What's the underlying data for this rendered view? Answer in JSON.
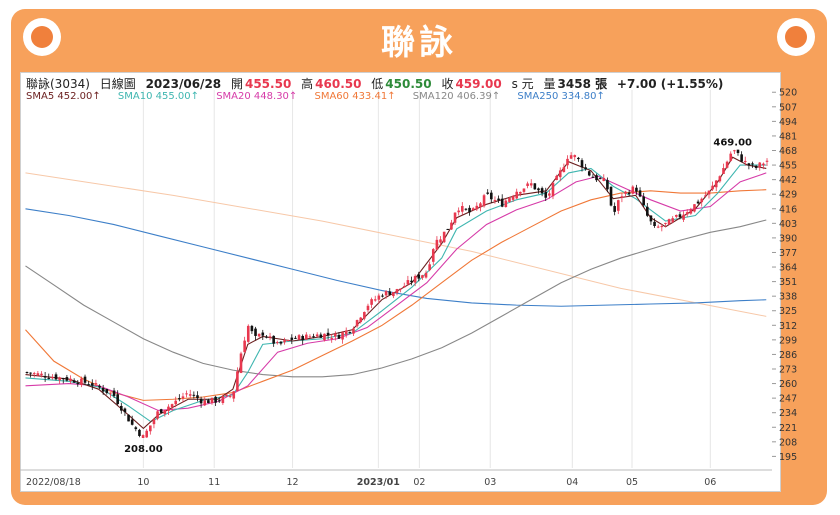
{
  "header": {
    "title": "聯詠"
  },
  "info": {
    "name": "聯詠(3034)",
    "period": "日線圖",
    "date": "2023/06/28",
    "open_label": "開",
    "open": "455.50",
    "high_label": "高",
    "high": "460.50",
    "low_label": "低",
    "low": "450.50",
    "close_label": "收",
    "close": "459.00",
    "currency": "s 元",
    "volume_label": "量",
    "volume": "3458 張",
    "change": "+7.00 (+1.55%)"
  },
  "colors": {
    "frame": "#f7a15b",
    "up": "#e8384f",
    "down": "#111111",
    "sma5": "#6b1f1f",
    "sma10": "#3fb6b0",
    "sma20": "#d63ba8",
    "sma60": "#f07838",
    "sma120": "#888888",
    "sma250": "#3d7fc8"
  },
  "chart_data": {
    "type": "candlestick",
    "y_axis": {
      "min": 190,
      "max": 522,
      "ticks": [
        520,
        507,
        494,
        481,
        468,
        455,
        442,
        429,
        416,
        403,
        390,
        377,
        364,
        351,
        338,
        325,
        312,
        299,
        286,
        273,
        260,
        247,
        234,
        221,
        208,
        195
      ]
    },
    "x_axis": {
      "labels": [
        "2022/08/18",
        "10",
        "11",
        "12",
        "2023/01",
        "02",
        "03",
        "04",
        "05",
        "06"
      ]
    },
    "annotations": [
      {
        "label": "208.00",
        "value": 208
      },
      {
        "label": "469.00",
        "value": 469
      }
    ],
    "legend": [
      {
        "key": "sma5",
        "label": "SMA5 452.00↑"
      },
      {
        "key": "sma10",
        "label": "SMA10 455.00↑"
      },
      {
        "key": "sma20",
        "label": "SMA20 448.30↑"
      },
      {
        "key": "sma60",
        "label": "SMA60 433.41↑"
      },
      {
        "key": "sma120",
        "label": "SMA120 406.39↑"
      },
      {
        "key": "sma250",
        "label": "SMA250 334.80↑"
      }
    ],
    "close_series": [
      {
        "x": 0.2,
        "v": 270
      },
      {
        "x": 6,
        "v": 264
      },
      {
        "x": 9,
        "v": 260
      },
      {
        "x": 12,
        "v": 250
      },
      {
        "x": 14.5,
        "v": 223
      },
      {
        "x": 16,
        "v": 212
      },
      {
        "x": 18,
        "v": 235
      },
      {
        "x": 20,
        "v": 242
      },
      {
        "x": 22,
        "v": 252
      },
      {
        "x": 24,
        "v": 244
      },
      {
        "x": 26,
        "v": 245
      },
      {
        "x": 28,
        "v": 250
      },
      {
        "x": 29,
        "v": 285
      },
      {
        "x": 30,
        "v": 312
      },
      {
        "x": 31,
        "v": 300
      },
      {
        "x": 32,
        "v": 305
      },
      {
        "x": 34,
        "v": 294
      },
      {
        "x": 36,
        "v": 300
      },
      {
        "x": 38,
        "v": 302
      },
      {
        "x": 40,
        "v": 304
      },
      {
        "x": 42,
        "v": 302
      },
      {
        "x": 44,
        "v": 310
      },
      {
        "x": 45,
        "v": 320
      },
      {
        "x": 46,
        "v": 330
      },
      {
        "x": 48,
        "v": 340
      },
      {
        "x": 50,
        "v": 343
      },
      {
        "x": 52,
        "v": 352
      },
      {
        "x": 54,
        "v": 360
      },
      {
        "x": 55,
        "v": 385
      },
      {
        "x": 56,
        "v": 392
      },
      {
        "x": 57,
        "v": 400
      },
      {
        "x": 58,
        "v": 418
      },
      {
        "x": 60,
        "v": 412
      },
      {
        "x": 62,
        "v": 428
      },
      {
        "x": 64,
        "v": 420
      },
      {
        "x": 66,
        "v": 432
      },
      {
        "x": 68,
        "v": 438
      },
      {
        "x": 70,
        "v": 425
      },
      {
        "x": 72,
        "v": 450
      },
      {
        "x": 73,
        "v": 465
      },
      {
        "x": 74,
        "v": 462
      },
      {
        "x": 76,
        "v": 445
      },
      {
        "x": 78,
        "v": 440
      },
      {
        "x": 79,
        "v": 410
      },
      {
        "x": 80,
        "v": 428
      },
      {
        "x": 82,
        "v": 435
      },
      {
        "x": 83.5,
        "v": 410
      },
      {
        "x": 84.5,
        "v": 398
      },
      {
        "x": 86,
        "v": 402
      },
      {
        "x": 88,
        "v": 410
      },
      {
        "x": 90,
        "v": 420
      },
      {
        "x": 92,
        "v": 432
      },
      {
        "x": 94,
        "v": 455
      },
      {
        "x": 95,
        "v": 469
      },
      {
        "x": 96.5,
        "v": 458
      },
      {
        "x": 98,
        "v": 452
      },
      {
        "x": 99.5,
        "v": 459
      }
    ],
    "sma_series": {
      "sma5": [
        [
          0.2,
          268
        ],
        [
          6,
          264
        ],
        [
          10,
          255
        ],
        [
          14,
          232
        ],
        [
          16,
          220
        ],
        [
          18,
          232
        ],
        [
          22,
          246
        ],
        [
          26,
          246
        ],
        [
          28,
          255
        ],
        [
          30,
          295
        ],
        [
          32,
          302
        ],
        [
          36,
          298
        ],
        [
          40,
          302
        ],
        [
          44,
          308
        ],
        [
          48,
          335
        ],
        [
          52,
          350
        ],
        [
          56,
          385
        ],
        [
          58,
          408
        ],
        [
          62,
          420
        ],
        [
          66,
          428
        ],
        [
          70,
          432
        ],
        [
          73,
          458
        ],
        [
          76,
          450
        ],
        [
          79,
          425
        ],
        [
          82,
          428
        ],
        [
          84,
          408
        ],
        [
          86,
          400
        ],
        [
          90,
          416
        ],
        [
          93,
          440
        ],
        [
          95,
          462
        ],
        [
          97,
          455
        ],
        [
          99.5,
          452
        ]
      ],
      "sma10": [
        [
          0.2,
          265
        ],
        [
          6,
          262
        ],
        [
          10,
          257
        ],
        [
          14,
          240
        ],
        [
          17,
          226
        ],
        [
          20,
          236
        ],
        [
          24,
          245
        ],
        [
          28,
          250
        ],
        [
          30,
          270
        ],
        [
          32,
          295
        ],
        [
          36,
          298
        ],
        [
          40,
          300
        ],
        [
          44,
          305
        ],
        [
          48,
          325
        ],
        [
          52,
          346
        ],
        [
          56,
          372
        ],
        [
          58,
          398
        ],
        [
          62,
          414
        ],
        [
          66,
          424
        ],
        [
          70,
          430
        ],
        [
          73,
          448
        ],
        [
          76,
          452
        ],
        [
          79,
          436
        ],
        [
          82,
          425
        ],
        [
          84,
          415
        ],
        [
          86,
          405
        ],
        [
          90,
          410
        ],
        [
          93,
          430
        ],
        [
          96,
          455
        ],
        [
          99.5,
          455
        ]
      ],
      "sma20": [
        [
          0.2,
          258
        ],
        [
          6,
          260
        ],
        [
          10,
          258
        ],
        [
          14,
          248
        ],
        [
          18,
          236
        ],
        [
          22,
          238
        ],
        [
          26,
          244
        ],
        [
          30,
          258
        ],
        [
          34,
          288
        ],
        [
          38,
          296
        ],
        [
          42,
          300
        ],
        [
          46,
          310
        ],
        [
          50,
          330
        ],
        [
          54,
          350
        ],
        [
          58,
          380
        ],
        [
          62,
          402
        ],
        [
          66,
          415
        ],
        [
          70,
          424
        ],
        [
          74,
          440
        ],
        [
          77,
          445
        ],
        [
          80,
          436
        ],
        [
          84,
          424
        ],
        [
          88,
          414
        ],
        [
          92,
          418
        ],
        [
          96,
          440
        ],
        [
          99.5,
          448
        ]
      ],
      "sma60": [
        [
          0.2,
          308
        ],
        [
          4,
          280
        ],
        [
          8,
          264
        ],
        [
          12,
          252
        ],
        [
          16,
          245
        ],
        [
          20,
          246
        ],
        [
          24,
          248
        ],
        [
          28,
          252
        ],
        [
          32,
          262
        ],
        [
          36,
          272
        ],
        [
          40,
          285
        ],
        [
          44,
          298
        ],
        [
          48,
          312
        ],
        [
          52,
          330
        ],
        [
          56,
          350
        ],
        [
          60,
          370
        ],
        [
          64,
          386
        ],
        [
          68,
          400
        ],
        [
          72,
          414
        ],
        [
          76,
          424
        ],
        [
          80,
          430
        ],
        [
          84,
          432
        ],
        [
          88,
          430
        ],
        [
          92,
          430
        ],
        [
          96,
          432
        ],
        [
          99.5,
          433
        ]
      ],
      "sma120": [
        [
          0.2,
          365
        ],
        [
          4,
          348
        ],
        [
          8,
          330
        ],
        [
          12,
          315
        ],
        [
          16,
          300
        ],
        [
          20,
          288
        ],
        [
          24,
          278
        ],
        [
          28,
          272
        ],
        [
          32,
          268
        ],
        [
          36,
          266
        ],
        [
          40,
          266
        ],
        [
          44,
          268
        ],
        [
          48,
          274
        ],
        [
          52,
          282
        ],
        [
          56,
          292
        ],
        [
          60,
          305
        ],
        [
          64,
          320
        ],
        [
          68,
          335
        ],
        [
          72,
          350
        ],
        [
          76,
          362
        ],
        [
          80,
          372
        ],
        [
          84,
          380
        ],
        [
          88,
          388
        ],
        [
          92,
          395
        ],
        [
          96,
          400
        ],
        [
          99.5,
          406
        ]
      ],
      "sma250": [
        [
          0.2,
          416
        ],
        [
          6,
          410
        ],
        [
          12,
          402
        ],
        [
          18,
          392
        ],
        [
          24,
          382
        ],
        [
          30,
          372
        ],
        [
          36,
          362
        ],
        [
          42,
          352
        ],
        [
          48,
          343
        ],
        [
          54,
          336
        ],
        [
          60,
          332
        ],
        [
          66,
          330
        ],
        [
          72,
          329
        ],
        [
          78,
          330
        ],
        [
          84,
          331
        ],
        [
          90,
          332
        ],
        [
          96,
          334
        ],
        [
          99.5,
          334.8
        ]
      ],
      "trend": [
        [
          0.2,
          448
        ],
        [
          20,
          428
        ],
        [
          40,
          405
        ],
        [
          60,
          378
        ],
        [
          80,
          345
        ],
        [
          99.5,
          320
        ]
      ]
    }
  }
}
